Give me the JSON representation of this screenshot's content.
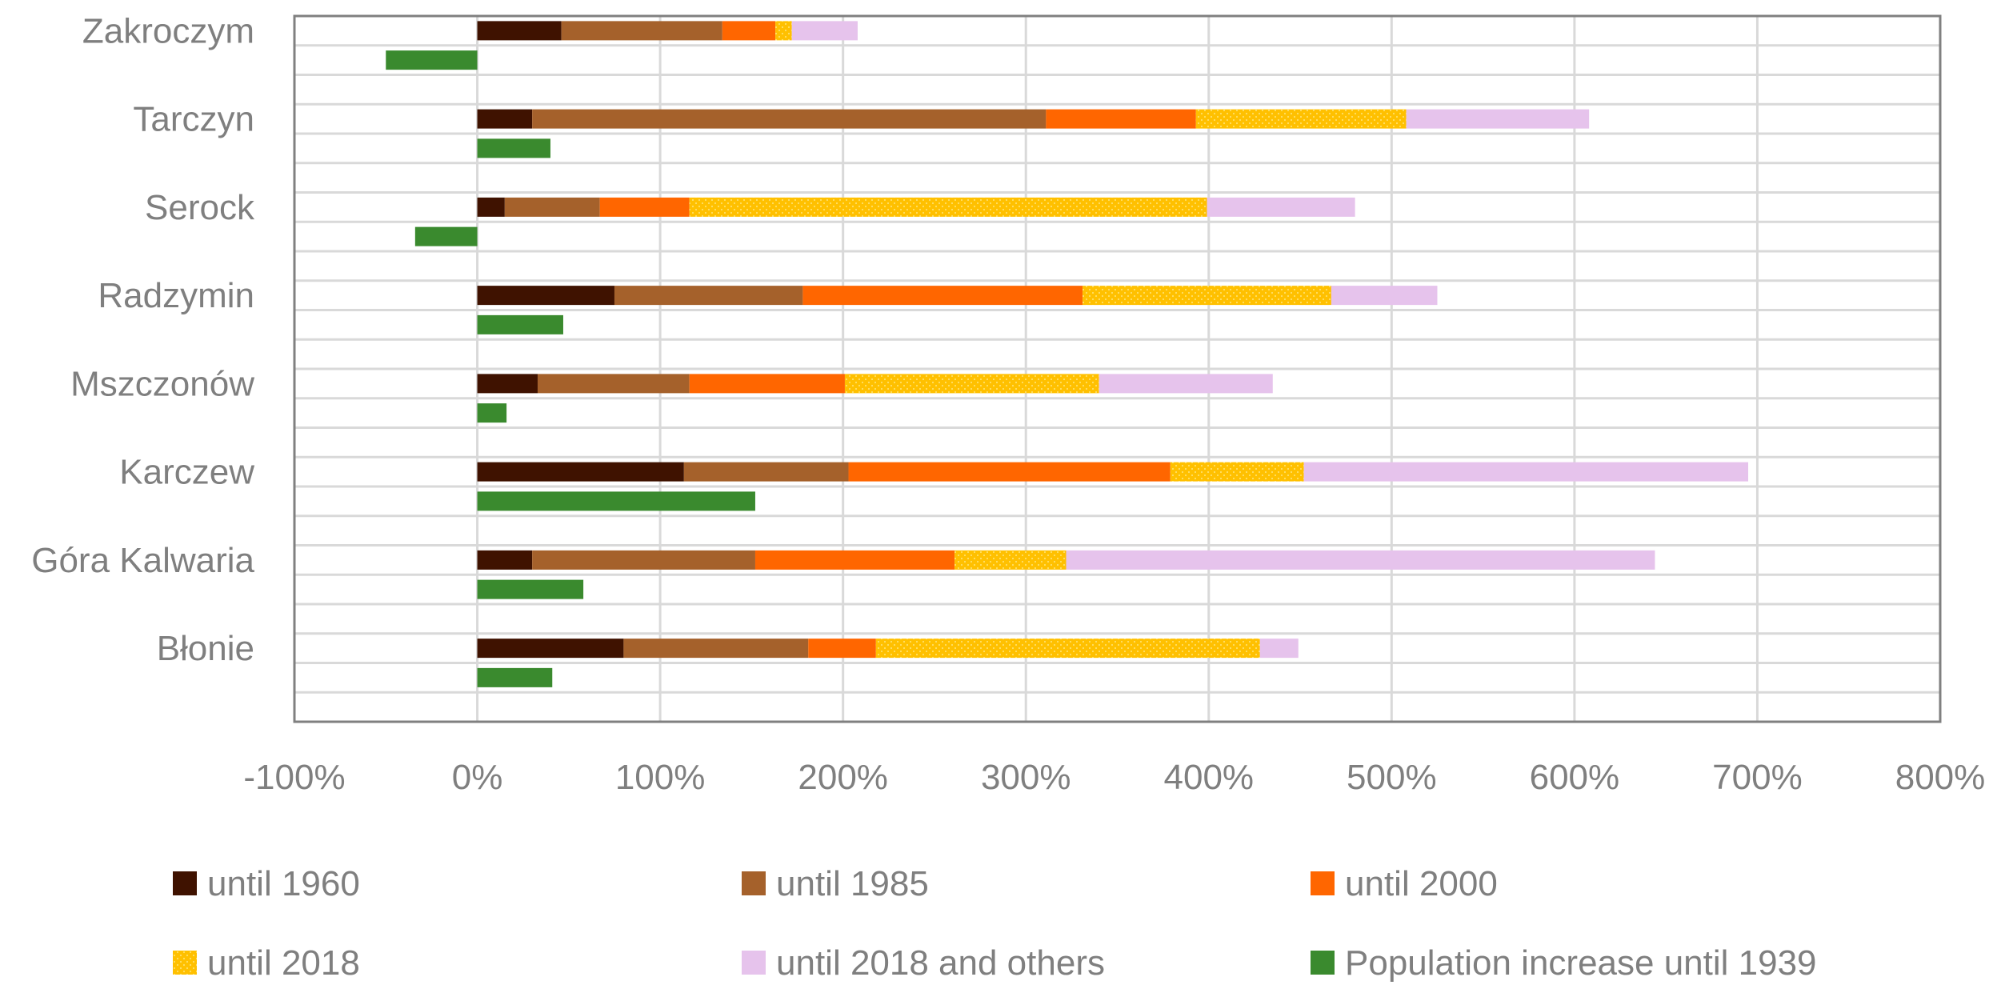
{
  "chart_data": {
    "type": "bar",
    "orientation": "horizontal",
    "stacked_series": [
      "until 1960",
      "until 1985",
      "until 2000",
      "until 2018",
      "until 2018 and others"
    ],
    "categories": [
      "Zakroczym",
      "Tarczyn",
      "Serock",
      "Radzymin",
      "Mszczonów",
      "Karczew",
      "Góra Kalwaria",
      "Błonie"
    ],
    "series": [
      {
        "name": "until 1960",
        "color": "#3f1200",
        "pattern": "solid",
        "values": [
          46,
          30,
          15,
          75,
          33,
          113,
          30,
          80
        ]
      },
      {
        "name": "until 1985",
        "color": "#a5612b",
        "pattern": "solid",
        "values": [
          88,
          281,
          52,
          103,
          83,
          90,
          122,
          101
        ]
      },
      {
        "name": "until 2000",
        "color": "#ff6600",
        "pattern": "solid",
        "values": [
          29,
          82,
          49,
          153,
          85,
          176,
          109,
          37
        ]
      },
      {
        "name": "until 2018",
        "color": "#ffc000",
        "pattern": "dotted",
        "values": [
          9,
          115,
          283,
          136,
          139,
          73,
          61,
          210
        ]
      },
      {
        "name": "until 2018 and others",
        "color": "#e6c3ec",
        "pattern": "solid",
        "values": [
          36,
          100,
          81,
          58,
          95,
          243,
          322,
          21
        ]
      },
      {
        "name": "Population increase until 1939",
        "color": "#3a8a2e",
        "pattern": "solid",
        "values": [
          -50,
          40,
          -34,
          47,
          16,
          152,
          58,
          41
        ]
      }
    ],
    "xlim": [
      -100,
      800
    ],
    "ticks": [
      -100,
      0,
      100,
      200,
      300,
      400,
      500,
      600,
      700,
      800
    ],
    "tick_labels": [
      "-100%",
      "0%",
      "100%",
      "200%",
      "300%",
      "400%",
      "500%",
      "600%",
      "700%",
      "800%"
    ],
    "grid": true,
    "legend_position": "bottom",
    "legend": [
      "until 1960",
      "until 1985",
      "until 2000",
      "until 2018",
      "until 2018 and others",
      "Population increase until 1939"
    ],
    "title": "",
    "xlabel": "",
    "ylabel": ""
  }
}
